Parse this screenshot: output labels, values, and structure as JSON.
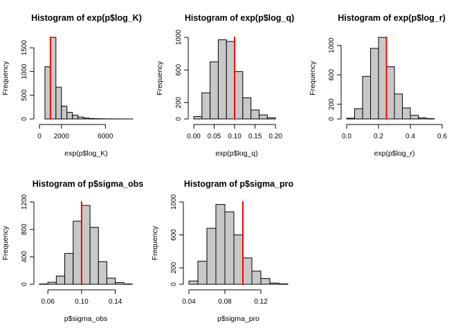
{
  "chart_data": [
    {
      "type": "bar",
      "title": "Histogram of exp(p$log_K)",
      "xlabel": "exp(p$log_K)",
      "ylabel": "Frequency",
      "bin_edges": [
        0,
        500,
        1000,
        1500,
        2000,
        2500,
        3000,
        3500,
        4000,
        4500,
        5000,
        5500,
        6000,
        6500,
        7000,
        7500,
        8000,
        8500
      ],
      "values": [
        0,
        1100,
        1720,
        670,
        270,
        140,
        80,
        40,
        20,
        10,
        6,
        4,
        2,
        2,
        1,
        1,
        1
      ],
      "xlim": [
        0,
        8500
      ],
      "ylim": [
        0,
        1720
      ],
      "xticks": [
        0,
        2000,
        6000
      ],
      "xtick_labels": [
        "0",
        "2000",
        "6000"
      ],
      "yticks": [
        0,
        500,
        1000,
        1500
      ],
      "ytick_labels": [
        "0",
        "500",
        "1000",
        "1500"
      ],
      "ref_line": 1000,
      "ref_color": "#ff0000",
      "bar_color": "#c8c8c8"
    },
    {
      "type": "bar",
      "title": "Histogram of exp(p$log_q)",
      "xlabel": "exp(p$log_q)",
      "ylabel": "Frequency",
      "bin_edges": [
        0,
        0.02,
        0.04,
        0.06,
        0.08,
        0.1,
        0.12,
        0.14,
        0.16,
        0.18,
        0.2
      ],
      "values": [
        30,
        320,
        700,
        970,
        950,
        580,
        260,
        110,
        50,
        15
      ],
      "xlim": [
        0,
        0.21
      ],
      "ylim": [
        0,
        1000
      ],
      "xticks": [
        0,
        0.05,
        0.1,
        0.15,
        0.2
      ],
      "xtick_labels": [
        "0.00",
        "0.05",
        "0.10",
        "0.15",
        "0.20"
      ],
      "yticks": [
        0,
        200,
        600,
        1000
      ],
      "ytick_labels": [
        "0",
        "200",
        "600",
        "1000"
      ],
      "ref_line": 0.1,
      "ref_color": "#ff0000",
      "bar_color": "#c8c8c8"
    },
    {
      "type": "bar",
      "title": "Histogram of exp(p$log_r)",
      "xlabel": "exp(p$log_r)",
      "ylabel": "Frequency",
      "bin_edges": [
        0,
        0.05,
        0.1,
        0.15,
        0.2,
        0.25,
        0.3,
        0.35,
        0.4,
        0.45,
        0.5,
        0.55
      ],
      "values": [
        10,
        140,
        580,
        960,
        1110,
        710,
        340,
        150,
        50,
        15,
        5
      ],
      "xlim": [
        0,
        0.6
      ],
      "ylim": [
        0,
        1110
      ],
      "xticks": [
        0,
        0.2,
        0.4,
        0.6
      ],
      "xtick_labels": [
        "0.0",
        "0.2",
        "0.4",
        "0.6"
      ],
      "yticks": [
        0,
        200,
        600,
        1000
      ],
      "ytick_labels": [
        "0",
        "200",
        "600",
        "1000"
      ],
      "ref_line": 0.25,
      "ref_color": "#ff0000",
      "bar_color": "#c8c8c8"
    },
    {
      "type": "bar",
      "title": "Histogram of p$sigma_obs",
      "xlabel": "p$sigma_obs",
      "ylabel": "Frequency",
      "bin_edges": [
        0.05,
        0.06,
        0.07,
        0.08,
        0.09,
        0.1,
        0.11,
        0.12,
        0.13,
        0.14,
        0.15,
        0.16
      ],
      "values": [
        5,
        30,
        120,
        450,
        920,
        1150,
        830,
        330,
        90,
        25,
        5
      ],
      "xlim": [
        0.05,
        0.16
      ],
      "ylim": [
        0,
        1200
      ],
      "xticks": [
        0.06,
        0.1,
        0.14
      ],
      "xtick_labels": [
        "0.06",
        "0.10",
        "0.14"
      ],
      "yticks": [
        0,
        400,
        800,
        1200
      ],
      "ytick_labels": [
        "0",
        "400",
        "800",
        "1200"
      ],
      "ref_line": 0.1,
      "ref_color": "#ff0000",
      "bar_color": "#c8c8c8"
    },
    {
      "type": "bar",
      "title": "Histogram of p$sigma_pro",
      "xlabel": "p$sigma_pro",
      "ylabel": "Frequency",
      "bin_edges": [
        0.04,
        0.05,
        0.06,
        0.07,
        0.08,
        0.09,
        0.1,
        0.11,
        0.12,
        0.13,
        0.14,
        0.15
      ],
      "values": [
        40,
        280,
        680,
        970,
        880,
        600,
        320,
        160,
        70,
        15,
        5
      ],
      "xlim": [
        0.04,
        0.15
      ],
      "ylim": [
        0,
        1000
      ],
      "xticks": [
        0.04,
        0.08,
        0.12
      ],
      "xtick_labels": [
        "0.04",
        "0.08",
        "0.12"
      ],
      "yticks": [
        0,
        200,
        600,
        1000
      ],
      "ytick_labels": [
        "0",
        "200",
        "600",
        "1000"
      ],
      "ref_line": 0.1,
      "ref_color": "#ff0000",
      "bar_color": "#c8c8c8"
    }
  ]
}
